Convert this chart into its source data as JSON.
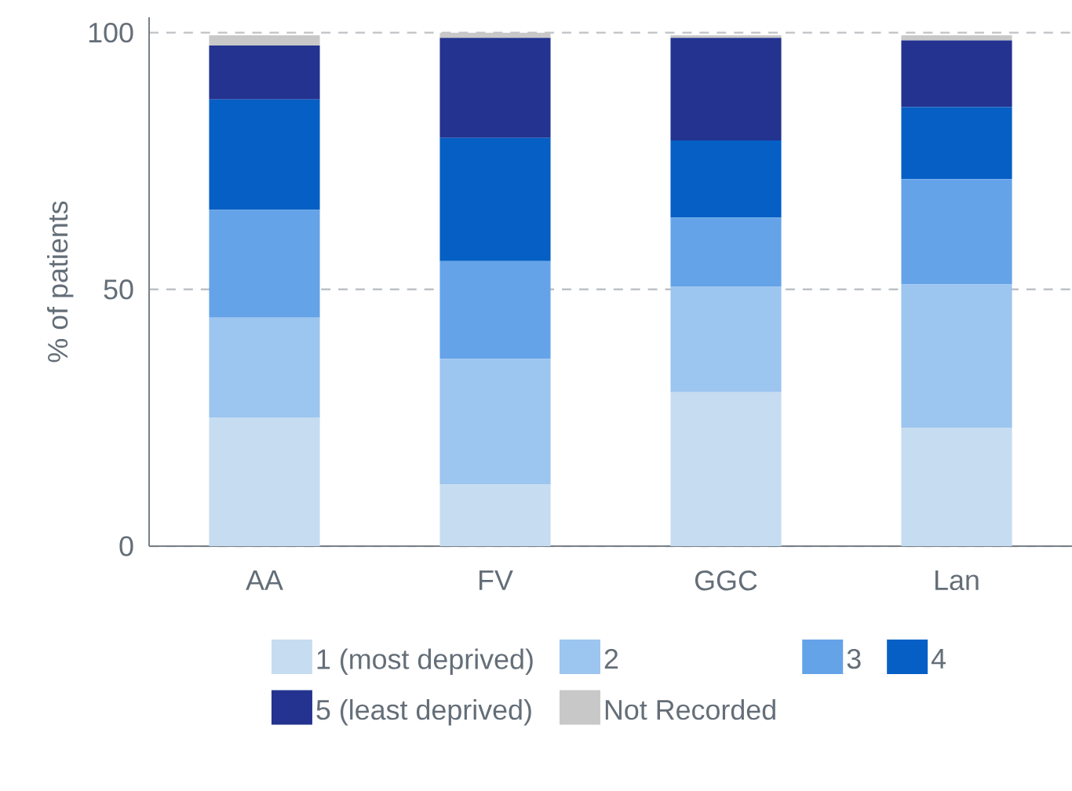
{
  "chart_data": {
    "type": "bar",
    "stacked": true,
    "ylabel": "% of patients",
    "categories": [
      "AA",
      "FV",
      "GGC",
      "Lan"
    ],
    "series": [
      {
        "name": "1 (most deprived)",
        "color": "#c6dcf0",
        "values": [
          25,
          12,
          30,
          23
        ]
      },
      {
        "name": "2",
        "color": "#9cc5ef",
        "values": [
          19.5,
          24.5,
          20.5,
          28
        ]
      },
      {
        "name": "3",
        "color": "#65a3e8",
        "values": [
          21,
          19,
          13.5,
          20.5
        ]
      },
      {
        "name": "4",
        "color": "#055fc5",
        "values": [
          21.5,
          24,
          15,
          14
        ]
      },
      {
        "name": "5 (least deprived)",
        "color": "#23338f",
        "values": [
          10.5,
          19.5,
          20,
          13
        ]
      },
      {
        "name": "Not Recorded",
        "color": "#c8c8c8",
        "values": [
          2,
          1,
          0.5,
          1
        ]
      }
    ],
    "ylim": [
      0,
      103
    ],
    "yticks": [
      0,
      50,
      100
    ],
    "grid": "y",
    "legend": "bottom"
  }
}
